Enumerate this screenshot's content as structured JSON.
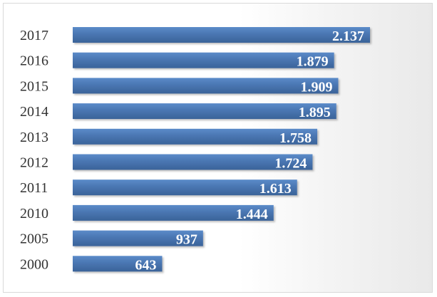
{
  "chart_data": {
    "type": "bar",
    "orientation": "horizontal",
    "categories": [
      "2017",
      "2016",
      "2015",
      "2014",
      "2013",
      "2012",
      "2011",
      "2010",
      "2005",
      "2000"
    ],
    "values": [
      2137,
      1879,
      1909,
      1895,
      1758,
      1724,
      1613,
      1444,
      937,
      643
    ],
    "value_labels": [
      "2.137",
      "1.879",
      "1.909",
      "1.895",
      "1.758",
      "1.724",
      "1.613",
      "1.444",
      "937",
      "643"
    ],
    "xlim": [
      0,
      2137
    ],
    "grid": false,
    "legend": "none",
    "bar_color": "#4a76b2",
    "bar_color_light": "#5b8bc9",
    "bar_color_dark": "#3a6399",
    "label_color": "#ffffff"
  }
}
